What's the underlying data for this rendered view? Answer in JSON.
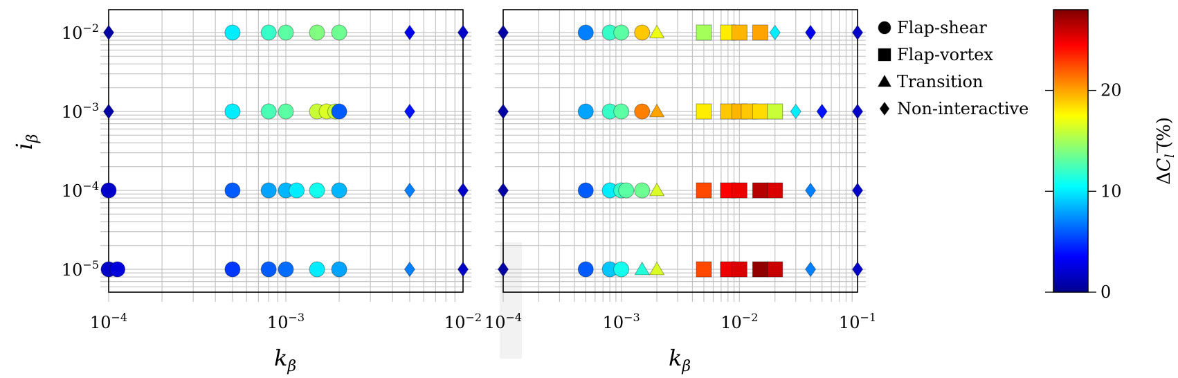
{
  "chart_data": [
    {
      "type": "scatter",
      "xlabel": "k",
      "xlabel_sub": "β",
      "ylabel": "i",
      "ylabel_sub": "β",
      "xscale": "log",
      "yscale": "log",
      "xlim": [
        0.0001,
        0.01
      ],
      "ylim": [
        6.5e-06,
        0.021
      ],
      "xticks": [
        {
          "base": "10",
          "exp": "−4"
        },
        {
          "base": "10",
          "exp": "−3"
        },
        {
          "base": "10",
          "exp": "−2"
        }
      ],
      "yticks": [
        {
          "base": "10",
          "exp": "−5"
        },
        {
          "base": "10",
          "exp": "−4"
        },
        {
          "base": "10",
          "exp": "−3"
        },
        {
          "base": "10",
          "exp": "−2"
        }
      ],
      "grid": true,
      "points": [
        {
          "k": 0.0001,
          "i": 0.01,
          "regime": "Non-interactive",
          "dcl": 1
        },
        {
          "k": 0.0005,
          "i": 0.01,
          "regime": "Flap-shear",
          "dcl": 10
        },
        {
          "k": 0.0008,
          "i": 0.01,
          "regime": "Flap-shear",
          "dcl": 12
        },
        {
          "k": 0.001,
          "i": 0.01,
          "regime": "Flap-shear",
          "dcl": 13
        },
        {
          "k": 0.0015,
          "i": 0.01,
          "regime": "Flap-shear",
          "dcl": 14
        },
        {
          "k": 0.002,
          "i": 0.01,
          "regime": "Flap-shear",
          "dcl": 13.5
        },
        {
          "k": 0.005,
          "i": 0.01,
          "regime": "Non-interactive",
          "dcl": 3
        },
        {
          "k": 0.01,
          "i": 0.01,
          "regime": "Non-interactive",
          "dcl": 2
        },
        {
          "k": 0.0001,
          "i": 0.001,
          "regime": "Non-interactive",
          "dcl": 1
        },
        {
          "k": 0.0005,
          "i": 0.001,
          "regime": "Flap-shear",
          "dcl": 10
        },
        {
          "k": 0.0008,
          "i": 0.001,
          "regime": "Flap-shear",
          "dcl": 12.5
        },
        {
          "k": 0.001,
          "i": 0.001,
          "regime": "Flap-shear",
          "dcl": 13
        },
        {
          "k": 0.0015,
          "i": 0.001,
          "regime": "Flap-shear",
          "dcl": 16
        },
        {
          "k": 0.0017,
          "i": 0.001,
          "regime": "Flap-shear",
          "dcl": 16.5
        },
        {
          "k": 0.0019,
          "i": 0.001,
          "regime": "Flap-shear",
          "dcl": 16
        },
        {
          "k": 0.002,
          "i": 0.001,
          "regime": "Flap-shear",
          "dcl": 6
        },
        {
          "k": 0.005,
          "i": 0.001,
          "regime": "Non-interactive",
          "dcl": 4
        },
        {
          "k": 0.0001,
          "i": 0.0001,
          "regime": "Flap-shear",
          "dcl": 2
        },
        {
          "k": 0.0005,
          "i": 0.0001,
          "regime": "Flap-shear",
          "dcl": 6
        },
        {
          "k": 0.0008,
          "i": 0.0001,
          "regime": "Flap-shear",
          "dcl": 8
        },
        {
          "k": 0.001,
          "i": 0.0001,
          "regime": "Flap-shear",
          "dcl": 8.5
        },
        {
          "k": 0.00115,
          "i": 0.0001,
          "regime": "Flap-shear",
          "dcl": 10
        },
        {
          "k": 0.0015,
          "i": 0.0001,
          "regime": "Flap-shear",
          "dcl": 11
        },
        {
          "k": 0.002,
          "i": 0.0001,
          "regime": "Flap-shear",
          "dcl": 8.5
        },
        {
          "k": 0.005,
          "i": 0.0001,
          "regime": "Non-interactive",
          "dcl": 7
        },
        {
          "k": 0.01,
          "i": 0.0001,
          "regime": "Non-interactive",
          "dcl": 2
        },
        {
          "k": 0.0001,
          "i": 1e-05,
          "regime": "Flap-shear",
          "dcl": 2
        },
        {
          "k": 0.000112,
          "i": 1e-05,
          "regime": "Flap-shear",
          "dcl": 2.5
        },
        {
          "k": 0.0005,
          "i": 1e-05,
          "regime": "Flap-shear",
          "dcl": 5
        },
        {
          "k": 0.0008,
          "i": 1e-05,
          "regime": "Flap-shear",
          "dcl": 6
        },
        {
          "k": 0.001,
          "i": 1e-05,
          "regime": "Flap-shear",
          "dcl": 6.5
        },
        {
          "k": 0.0015,
          "i": 1e-05,
          "regime": "Flap-shear",
          "dcl": 10
        },
        {
          "k": 0.002,
          "i": 1e-05,
          "regime": "Flap-shear",
          "dcl": 8
        },
        {
          "k": 0.005,
          "i": 1e-05,
          "regime": "Non-interactive",
          "dcl": 7
        },
        {
          "k": 0.01,
          "i": 1e-05,
          "regime": "Non-interactive",
          "dcl": 2
        }
      ]
    },
    {
      "type": "scatter",
      "xlabel": "k",
      "xlabel_sub": "β",
      "xscale": "log",
      "yscale": "log",
      "xlim": [
        0.0001,
        0.1
      ],
      "ylim": [
        6.5e-06,
        0.021
      ],
      "xticks": [
        {
          "base": "10",
          "exp": "−4"
        },
        {
          "base": "10",
          "exp": "−3"
        },
        {
          "base": "10",
          "exp": "−2"
        },
        {
          "base": "10",
          "exp": "−1"
        }
      ],
      "grid": true,
      "points": [
        {
          "k": 0.0001,
          "i": 0.01,
          "regime": "Non-interactive",
          "dcl": 1
        },
        {
          "k": 0.0005,
          "i": 0.01,
          "regime": "Flap-shear",
          "dcl": 7
        },
        {
          "k": 0.0008,
          "i": 0.01,
          "regime": "Flap-shear",
          "dcl": 12
        },
        {
          "k": 0.001,
          "i": 0.01,
          "regime": "Flap-shear",
          "dcl": 13
        },
        {
          "k": 0.0015,
          "i": 0.01,
          "regime": "Flap-shear",
          "dcl": 19
        },
        {
          "k": 0.002,
          "i": 0.01,
          "regime": "Transition",
          "dcl": 17
        },
        {
          "k": 0.005,
          "i": 0.01,
          "regime": "Flap-vortex",
          "dcl": 15
        },
        {
          "k": 0.008,
          "i": 0.01,
          "regime": "Flap-vortex",
          "dcl": 18
        },
        {
          "k": 0.01,
          "i": 0.01,
          "regime": "Flap-vortex",
          "dcl": 19.5
        },
        {
          "k": 0.015,
          "i": 0.01,
          "regime": "Flap-vortex",
          "dcl": 20
        },
        {
          "k": 0.02,
          "i": 0.01,
          "regime": "Non-interactive",
          "dcl": 10
        },
        {
          "k": 0.04,
          "i": 0.01,
          "regime": "Non-interactive",
          "dcl": 3
        },
        {
          "k": 0.1,
          "i": 0.01,
          "regime": "Non-interactive",
          "dcl": 2
        },
        {
          "k": 0.0001,
          "i": 0.001,
          "regime": "Non-interactive",
          "dcl": 1
        },
        {
          "k": 0.0005,
          "i": 0.001,
          "regime": "Flap-shear",
          "dcl": 8
        },
        {
          "k": 0.0008,
          "i": 0.001,
          "regime": "Flap-shear",
          "dcl": 12
        },
        {
          "k": 0.001,
          "i": 0.001,
          "regime": "Flap-shear",
          "dcl": 13
        },
        {
          "k": 0.0015,
          "i": 0.001,
          "regime": "Flap-shear",
          "dcl": 21
        },
        {
          "k": 0.002,
          "i": 0.001,
          "regime": "Transition",
          "dcl": 20
        },
        {
          "k": 0.005,
          "i": 0.001,
          "regime": "Flap-vortex",
          "dcl": 18
        },
        {
          "k": 0.008,
          "i": 0.001,
          "regime": "Flap-vortex",
          "dcl": 19
        },
        {
          "k": 0.01,
          "i": 0.001,
          "regime": "Flap-vortex",
          "dcl": 19.5
        },
        {
          "k": 0.012,
          "i": 0.001,
          "regime": "Flap-vortex",
          "dcl": 19
        },
        {
          "k": 0.015,
          "i": 0.001,
          "regime": "Flap-vortex",
          "dcl": 18.5
        },
        {
          "k": 0.02,
          "i": 0.001,
          "regime": "Flap-vortex",
          "dcl": 16
        },
        {
          "k": 0.03,
          "i": 0.001,
          "regime": "Non-interactive",
          "dcl": 10
        },
        {
          "k": 0.05,
          "i": 0.001,
          "regime": "Non-interactive",
          "dcl": 4
        },
        {
          "k": 0.1,
          "i": 0.001,
          "regime": "Non-interactive",
          "dcl": 2
        },
        {
          "k": 0.0001,
          "i": 0.0001,
          "regime": "Non-interactive",
          "dcl": 1
        },
        {
          "k": 0.0005,
          "i": 0.0001,
          "regime": "Flap-shear",
          "dcl": 6
        },
        {
          "k": 0.0008,
          "i": 0.0001,
          "regime": "Flap-shear",
          "dcl": 10
        },
        {
          "k": 0.001,
          "i": 0.0001,
          "regime": "Flap-shear",
          "dcl": 12
        },
        {
          "k": 0.0011,
          "i": 0.0001,
          "regime": "Flap-shear",
          "dcl": 13
        },
        {
          "k": 0.0015,
          "i": 0.0001,
          "regime": "Flap-shear",
          "dcl": 13.5
        },
        {
          "k": 0.002,
          "i": 0.0001,
          "regime": "Transition",
          "dcl": 16.5
        },
        {
          "k": 0.005,
          "i": 0.0001,
          "regime": "Flap-vortex",
          "dcl": 22.5
        },
        {
          "k": 0.008,
          "i": 0.0001,
          "regime": "Flap-vortex",
          "dcl": 24.5
        },
        {
          "k": 0.01,
          "i": 0.0001,
          "regime": "Flap-vortex",
          "dcl": 25
        },
        {
          "k": 0.015,
          "i": 0.0001,
          "regime": "Flap-vortex",
          "dcl": 26.5
        },
        {
          "k": 0.02,
          "i": 0.0001,
          "regime": "Flap-vortex",
          "dcl": 25.5
        },
        {
          "k": 0.04,
          "i": 0.0001,
          "regime": "Non-interactive",
          "dcl": 7
        },
        {
          "k": 0.1,
          "i": 0.0001,
          "regime": "Non-interactive",
          "dcl": 2
        },
        {
          "k": 0.0001,
          "i": 1e-05,
          "regime": "Non-interactive",
          "dcl": 1
        },
        {
          "k": 0.0005,
          "i": 1e-05,
          "regime": "Flap-shear",
          "dcl": 6
        },
        {
          "k": 0.0008,
          "i": 1e-05,
          "regime": "Flap-shear",
          "dcl": 9
        },
        {
          "k": 0.001,
          "i": 1e-05,
          "regime": "Flap-shear",
          "dcl": 11
        },
        {
          "k": 0.0015,
          "i": 1e-05,
          "regime": "Transition",
          "dcl": 11.5
        },
        {
          "k": 0.002,
          "i": 1e-05,
          "regime": "Transition",
          "dcl": 16.5
        },
        {
          "k": 0.005,
          "i": 1e-05,
          "regime": "Flap-vortex",
          "dcl": 22.5
        },
        {
          "k": 0.008,
          "i": 1e-05,
          "regime": "Flap-vortex",
          "dcl": 25
        },
        {
          "k": 0.01,
          "i": 1e-05,
          "regime": "Flap-vortex",
          "dcl": 25.5
        },
        {
          "k": 0.015,
          "i": 1e-05,
          "regime": "Flap-vortex",
          "dcl": 27.5
        },
        {
          "k": 0.02,
          "i": 1e-05,
          "regime": "Flap-vortex",
          "dcl": 26
        },
        {
          "k": 0.04,
          "i": 1e-05,
          "regime": "Non-interactive",
          "dcl": 7
        },
        {
          "k": 0.1,
          "i": 1e-05,
          "regime": "Non-interactive",
          "dcl": 2
        }
      ]
    }
  ],
  "legend": {
    "placement": "right of second panel",
    "items": [
      {
        "label": "Flap-shear",
        "marker": "circle"
      },
      {
        "label": "Flap-vortex",
        "marker": "square"
      },
      {
        "label": "Transition",
        "marker": "triangle"
      },
      {
        "label": "Non-interactive",
        "marker": "diamond"
      }
    ]
  },
  "colorbar": {
    "colormap": "jet",
    "range": [
      0,
      28
    ],
    "ticks": [
      0,
      10,
      20
    ],
    "label_delta": "Δ",
    "label_c": "C",
    "label_sub": "l",
    "label_unit": " (%)"
  }
}
